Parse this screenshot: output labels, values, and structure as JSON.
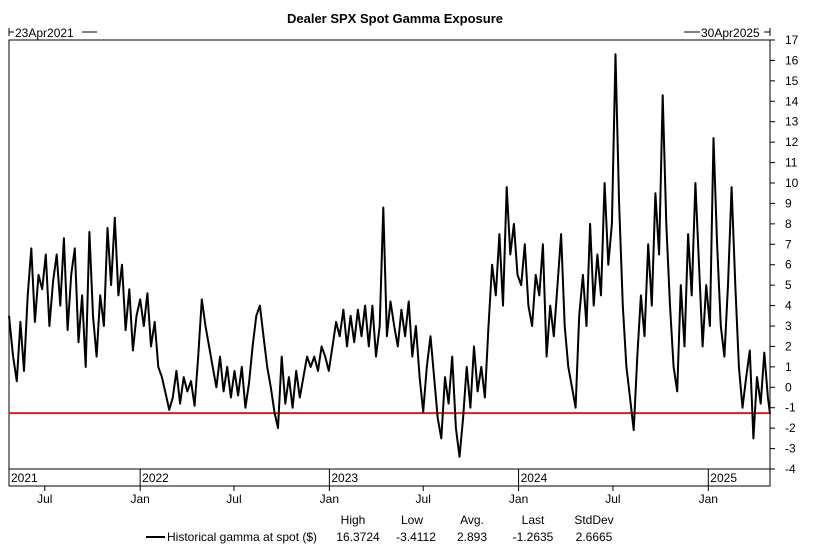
{
  "chart_data": {
    "type": "line",
    "title": "Dealer SPX Spot Gamma Exposure",
    "start_label": "23Apr2021",
    "end_label": "30Apr2025",
    "x_range": [
      "2021-04-23",
      "2025-04-30"
    ],
    "ylim": [
      -4,
      17
    ],
    "y_ticks": [
      "-4",
      "-3",
      "-2",
      "-1",
      "0",
      "1",
      "2",
      "3",
      "4",
      "5",
      "6",
      "7",
      "8",
      "9",
      "10",
      "11",
      "12",
      "13",
      "14",
      "15",
      "16",
      "17"
    ],
    "year_labels": [
      {
        "date": "2021-04-23",
        "label": "2021"
      },
      {
        "date": "2022-01-01",
        "label": "2022"
      },
      {
        "date": "2023-01-01",
        "label": "2023"
      },
      {
        "date": "2024-01-01",
        "label": "2024"
      },
      {
        "date": "2025-01-01",
        "label": "2025"
      }
    ],
    "month_labels": [
      {
        "date": "2021-07-01",
        "label": "Jul"
      },
      {
        "date": "2022-01-01",
        "label": "Jan"
      },
      {
        "date": "2022-07-01",
        "label": "Jul"
      },
      {
        "date": "2023-01-01",
        "label": "Jan"
      },
      {
        "date": "2023-07-01",
        "label": "Jul"
      },
      {
        "date": "2024-01-01",
        "label": "Jan"
      },
      {
        "date": "2024-07-01",
        "label": "Jul"
      },
      {
        "date": "2025-01-01",
        "label": "Jan"
      }
    ],
    "reference_line": {
      "value": -1.2635,
      "color": "#d42020"
    },
    "series": [
      {
        "name": "Historical gamma at spot ($)",
        "color": "#000000",
        "points": [
          [
            "2021-04-23",
            3.5
          ],
          [
            "2021-05-01",
            1.5
          ],
          [
            "2021-05-08",
            0.3
          ],
          [
            "2021-05-15",
            3.2
          ],
          [
            "2021-05-22",
            0.8
          ],
          [
            "2021-05-29",
            4.5
          ],
          [
            "2021-06-05",
            6.8
          ],
          [
            "2021-06-12",
            3.2
          ],
          [
            "2021-06-19",
            5.5
          ],
          [
            "2021-06-26",
            4.8
          ],
          [
            "2021-07-03",
            6.5
          ],
          [
            "2021-07-10",
            3.0
          ],
          [
            "2021-07-17",
            5.2
          ],
          [
            "2021-07-24",
            6.5
          ],
          [
            "2021-07-31",
            4.0
          ],
          [
            "2021-08-07",
            7.3
          ],
          [
            "2021-08-14",
            2.8
          ],
          [
            "2021-08-21",
            5.5
          ],
          [
            "2021-08-28",
            6.8
          ],
          [
            "2021-09-04",
            2.2
          ],
          [
            "2021-09-11",
            4.5
          ],
          [
            "2021-09-18",
            1.0
          ],
          [
            "2021-09-25",
            7.6
          ],
          [
            "2021-10-02",
            3.5
          ],
          [
            "2021-10-09",
            1.5
          ],
          [
            "2021-10-16",
            4.5
          ],
          [
            "2021-10-23",
            3.0
          ],
          [
            "2021-10-30",
            7.8
          ],
          [
            "2021-11-06",
            5.0
          ],
          [
            "2021-11-13",
            8.3
          ],
          [
            "2021-11-20",
            4.5
          ],
          [
            "2021-11-27",
            6.0
          ],
          [
            "2021-12-04",
            2.8
          ],
          [
            "2021-12-11",
            4.8
          ],
          [
            "2021-12-18",
            1.8
          ],
          [
            "2021-12-25",
            3.5
          ],
          [
            "2022-01-01",
            4.3
          ],
          [
            "2022-01-08",
            3.0
          ],
          [
            "2022-01-15",
            4.6
          ],
          [
            "2022-01-22",
            2.0
          ],
          [
            "2022-01-29",
            3.2
          ],
          [
            "2022-02-05",
            1.0
          ],
          [
            "2022-02-12",
            0.5
          ],
          [
            "2022-02-19",
            -0.3
          ],
          [
            "2022-02-26",
            -1.1
          ],
          [
            "2022-03-05",
            -0.5
          ],
          [
            "2022-03-12",
            0.8
          ],
          [
            "2022-03-19",
            -0.8
          ],
          [
            "2022-03-26",
            0.5
          ],
          [
            "2022-04-02",
            -0.2
          ],
          [
            "2022-04-09",
            0.3
          ],
          [
            "2022-04-16",
            -0.9
          ],
          [
            "2022-04-23",
            1.5
          ],
          [
            "2022-04-30",
            4.3
          ],
          [
            "2022-05-07",
            3.0
          ],
          [
            "2022-05-14",
            2.0
          ],
          [
            "2022-05-21",
            1.0
          ],
          [
            "2022-05-28",
            0.0
          ],
          [
            "2022-06-04",
            1.5
          ],
          [
            "2022-06-11",
            -0.2
          ],
          [
            "2022-06-18",
            1.0
          ],
          [
            "2022-06-25",
            -0.5
          ],
          [
            "2022-07-02",
            0.8
          ],
          [
            "2022-07-09",
            -0.4
          ],
          [
            "2022-07-16",
            1.0
          ],
          [
            "2022-07-23",
            -1.0
          ],
          [
            "2022-07-30",
            0.2
          ],
          [
            "2022-08-06",
            2.0
          ],
          [
            "2022-08-13",
            3.5
          ],
          [
            "2022-08-20",
            4.0
          ],
          [
            "2022-08-27",
            2.5
          ],
          [
            "2022-09-03",
            1.0
          ],
          [
            "2022-09-10",
            0.0
          ],
          [
            "2022-09-17",
            -1.2
          ],
          [
            "2022-09-24",
            -2.0
          ],
          [
            "2022-10-01",
            1.5
          ],
          [
            "2022-10-08",
            -0.8
          ],
          [
            "2022-10-15",
            0.5
          ],
          [
            "2022-10-22",
            -1.0
          ],
          [
            "2022-10-29",
            0.8
          ],
          [
            "2022-11-05",
            -0.5
          ],
          [
            "2022-11-12",
            0.5
          ],
          [
            "2022-11-19",
            1.5
          ],
          [
            "2022-11-26",
            1.0
          ],
          [
            "2022-12-03",
            1.5
          ],
          [
            "2022-12-10",
            0.8
          ],
          [
            "2022-12-17",
            2.0
          ],
          [
            "2022-12-24",
            1.5
          ],
          [
            "2022-12-31",
            0.8
          ],
          [
            "2023-01-07",
            2.0
          ],
          [
            "2023-01-14",
            3.2
          ],
          [
            "2023-01-21",
            2.5
          ],
          [
            "2023-01-28",
            3.8
          ],
          [
            "2023-02-04",
            2.0
          ],
          [
            "2023-02-11",
            3.5
          ],
          [
            "2023-02-18",
            2.2
          ],
          [
            "2023-02-25",
            3.8
          ],
          [
            "2023-03-04",
            2.5
          ],
          [
            "2023-03-11",
            4.0
          ],
          [
            "2023-03-18",
            2.0
          ],
          [
            "2023-03-25",
            4.0
          ],
          [
            "2023-04-01",
            1.5
          ],
          [
            "2023-04-08",
            3.0
          ],
          [
            "2023-04-15",
            8.8
          ],
          [
            "2023-04-22",
            2.5
          ],
          [
            "2023-04-29",
            4.2
          ],
          [
            "2023-05-06",
            3.0
          ],
          [
            "2023-05-13",
            2.0
          ],
          [
            "2023-05-20",
            3.8
          ],
          [
            "2023-05-27",
            2.5
          ],
          [
            "2023-06-03",
            4.2
          ],
          [
            "2023-06-10",
            1.5
          ],
          [
            "2023-06-17",
            3.0
          ],
          [
            "2023-06-24",
            0.5
          ],
          [
            "2023-07-01",
            -1.2
          ],
          [
            "2023-07-08",
            1.0
          ],
          [
            "2023-07-15",
            2.5
          ],
          [
            "2023-07-22",
            0.5
          ],
          [
            "2023-07-29",
            -1.5
          ],
          [
            "2023-08-05",
            -2.5
          ],
          [
            "2023-08-12",
            0.5
          ],
          [
            "2023-08-19",
            -0.8
          ],
          [
            "2023-08-26",
            1.5
          ],
          [
            "2023-09-02",
            -2.0
          ],
          [
            "2023-09-09",
            -3.4
          ],
          [
            "2023-09-16",
            -1.5
          ],
          [
            "2023-09-23",
            1.0
          ],
          [
            "2023-09-30",
            -1.0
          ],
          [
            "2023-10-07",
            2.0
          ],
          [
            "2023-10-14",
            -0.2
          ],
          [
            "2023-10-21",
            1.0
          ],
          [
            "2023-10-28",
            -0.5
          ],
          [
            "2023-11-04",
            3.0
          ],
          [
            "2023-11-11",
            6.0
          ],
          [
            "2023-11-18",
            4.5
          ],
          [
            "2023-11-25",
            7.5
          ],
          [
            "2023-12-02",
            4.0
          ],
          [
            "2023-12-09",
            9.8
          ],
          [
            "2023-12-16",
            6.5
          ],
          [
            "2023-12-23",
            8.0
          ],
          [
            "2023-12-30",
            5.5
          ],
          [
            "2024-01-06",
            5.0
          ],
          [
            "2024-01-13",
            7.0
          ],
          [
            "2024-01-20",
            4.0
          ],
          [
            "2024-01-27",
            3.0
          ],
          [
            "2024-02-03",
            5.5
          ],
          [
            "2024-02-10",
            4.5
          ],
          [
            "2024-02-17",
            7.0
          ],
          [
            "2024-02-24",
            1.5
          ],
          [
            "2024-03-02",
            4.0
          ],
          [
            "2024-03-09",
            2.5
          ],
          [
            "2024-03-16",
            5.0
          ],
          [
            "2024-03-23",
            7.5
          ],
          [
            "2024-03-30",
            3.0
          ],
          [
            "2024-04-06",
            1.0
          ],
          [
            "2024-04-13",
            0.0
          ],
          [
            "2024-04-20",
            -1.0
          ],
          [
            "2024-04-27",
            3.5
          ],
          [
            "2024-05-04",
            5.5
          ],
          [
            "2024-05-11",
            3.0
          ],
          [
            "2024-05-18",
            8.0
          ],
          [
            "2024-05-25",
            4.0
          ],
          [
            "2024-06-01",
            6.5
          ],
          [
            "2024-06-08",
            4.5
          ],
          [
            "2024-06-15",
            10.0
          ],
          [
            "2024-06-22",
            6.0
          ],
          [
            "2024-06-29",
            8.0
          ],
          [
            "2024-07-06",
            16.3
          ],
          [
            "2024-07-13",
            9.0
          ],
          [
            "2024-07-20",
            4.0
          ],
          [
            "2024-07-27",
            1.0
          ],
          [
            "2024-08-03",
            -0.5
          ],
          [
            "2024-08-10",
            -2.1
          ],
          [
            "2024-08-17",
            1.5
          ],
          [
            "2024-08-24",
            4.5
          ],
          [
            "2024-08-31",
            2.5
          ],
          [
            "2024-09-07",
            7.0
          ],
          [
            "2024-09-14",
            4.0
          ],
          [
            "2024-09-21",
            9.5
          ],
          [
            "2024-09-28",
            6.5
          ],
          [
            "2024-10-05",
            14.3
          ],
          [
            "2024-10-12",
            8.0
          ],
          [
            "2024-10-19",
            4.0
          ],
          [
            "2024-10-26",
            1.0
          ],
          [
            "2024-11-02",
            -0.2
          ],
          [
            "2024-11-09",
            5.0
          ],
          [
            "2024-11-16",
            2.0
          ],
          [
            "2024-11-23",
            7.5
          ],
          [
            "2024-11-30",
            4.5
          ],
          [
            "2024-12-07",
            10.0
          ],
          [
            "2024-12-14",
            6.0
          ],
          [
            "2024-12-21",
            2.0
          ],
          [
            "2024-12-28",
            5.0
          ],
          [
            "2025-01-04",
            3.0
          ],
          [
            "2025-01-11",
            12.2
          ],
          [
            "2025-01-18",
            7.0
          ],
          [
            "2025-01-25",
            3.0
          ],
          [
            "2025-02-01",
            1.5
          ],
          [
            "2025-02-08",
            5.0
          ],
          [
            "2025-02-15",
            9.8
          ],
          [
            "2025-02-22",
            5.0
          ],
          [
            "2025-03-01",
            1.0
          ],
          [
            "2025-03-08",
            -1.0
          ],
          [
            "2025-03-15",
            0.5
          ],
          [
            "2025-03-22",
            1.8
          ],
          [
            "2025-03-29",
            -2.5
          ],
          [
            "2025-04-05",
            0.5
          ],
          [
            "2025-04-12",
            -0.8
          ],
          [
            "2025-04-19",
            1.7
          ],
          [
            "2025-04-26",
            -0.5
          ],
          [
            "2025-04-30",
            -1.3
          ]
        ]
      }
    ],
    "stats": {
      "headers": [
        "High",
        "Low",
        "Avg.",
        "Last",
        "StdDev"
      ],
      "values": [
        "16.3724",
        "-3.4112",
        "2.893",
        "-1.2635",
        "2.6665"
      ]
    }
  }
}
